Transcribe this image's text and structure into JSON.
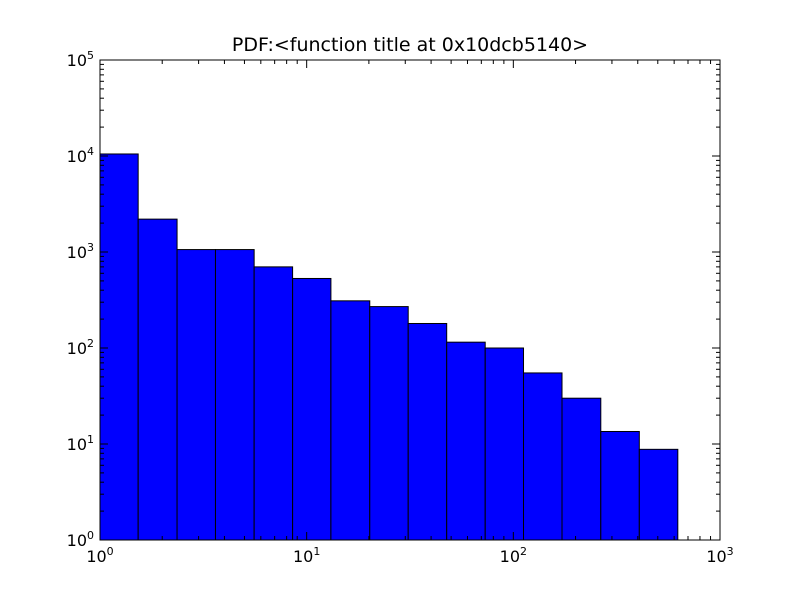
{
  "chart_data": {
    "type": "bar",
    "title": "PDF:<function title at 0x10dcb5140>",
    "xlabel": "",
    "ylabel": "",
    "xscale": "log",
    "yscale": "log",
    "xlim": [
      1,
      1000
    ],
    "ylim": [
      1,
      100000
    ],
    "x_ticks": [
      {
        "value": 1,
        "base": "10",
        "exp": "0"
      },
      {
        "value": 10,
        "base": "10",
        "exp": "1"
      },
      {
        "value": 100,
        "base": "10",
        "exp": "2"
      },
      {
        "value": 1000,
        "base": "10",
        "exp": "3"
      }
    ],
    "y_ticks": [
      {
        "value": 1,
        "base": "10",
        "exp": "0"
      },
      {
        "value": 10,
        "base": "10",
        "exp": "1"
      },
      {
        "value": 100,
        "base": "10",
        "exp": "2"
      },
      {
        "value": 1000,
        "base": "10",
        "exp": "3"
      },
      {
        "value": 10000,
        "base": "10",
        "exp": "4"
      },
      {
        "value": 100000,
        "base": "10",
        "exp": "5"
      }
    ],
    "bin_edges": [
      1.0,
      1.53,
      2.36,
      3.62,
      5.57,
      8.55,
      13.1,
      20.2,
      31.0,
      47.6,
      73.1,
      112.0,
      172.0,
      265.0,
      407.0,
      625.0
    ],
    "values": [
      10500,
      2200,
      1060,
      1060,
      700,
      530,
      310,
      270,
      180,
      115,
      100,
      55,
      30,
      13.5,
      8.8
    ],
    "bar_color": "#0000ff",
    "edge_color": "#000000",
    "grid": false,
    "legend": false
  }
}
